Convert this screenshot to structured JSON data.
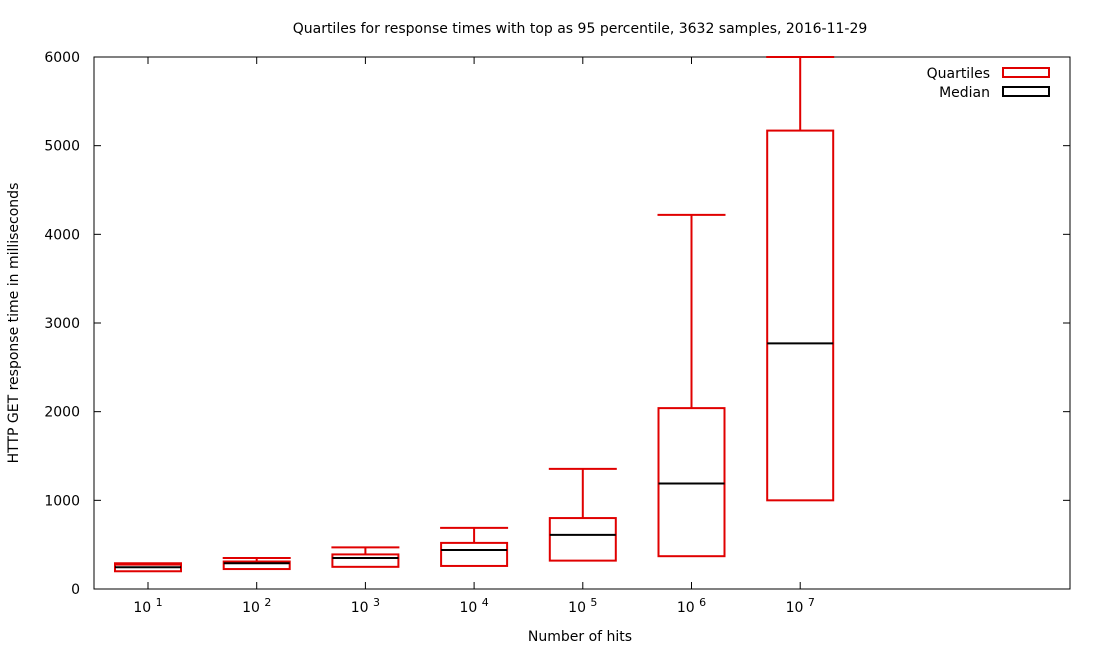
{
  "chart_data": {
    "type": "box",
    "title": "Quartiles for response times with top as 95 percentile, 3632 samples, 2016-11-29",
    "xlabel": "Number of hits",
    "ylabel": "HTTP GET response time in milliseconds",
    "ylim": [
      0,
      6000
    ],
    "yticks": [
      0,
      1000,
      2000,
      3000,
      4000,
      5000,
      6000
    ],
    "x_scale": "log",
    "categories": [
      {
        "base": "10",
        "exp": "1"
      },
      {
        "base": "10",
        "exp": "2"
      },
      {
        "base": "10",
        "exp": "3"
      },
      {
        "base": "10",
        "exp": "4"
      },
      {
        "base": "10",
        "exp": "5"
      },
      {
        "base": "10",
        "exp": "6"
      },
      {
        "base": "10",
        "exp": "7"
      }
    ],
    "boxes": [
      {
        "q1": 200,
        "median": 245,
        "q3": 275,
        "p95": 290
      },
      {
        "q1": 225,
        "median": 290,
        "q3": 310,
        "p95": 350
      },
      {
        "q1": 250,
        "median": 350,
        "q3": 390,
        "p95": 470
      },
      {
        "q1": 260,
        "median": 440,
        "q3": 520,
        "p95": 690
      },
      {
        "q1": 320,
        "median": 610,
        "q3": 800,
        "p95": 1355
      },
      {
        "q1": 370,
        "median": 1190,
        "q3": 2040,
        "p95": 4220
      },
      {
        "q1": 1000,
        "median": 2770,
        "q3": 5170,
        "p95": 6000
      }
    ],
    "legend": {
      "position": "top-right",
      "entries": [
        {
          "label": "Quartiles",
          "color": "#e00000"
        },
        {
          "label": "Median",
          "color": "#000000"
        }
      ]
    },
    "colors": {
      "box": "#e00000",
      "median": "#000000",
      "frame": "#000000"
    }
  }
}
